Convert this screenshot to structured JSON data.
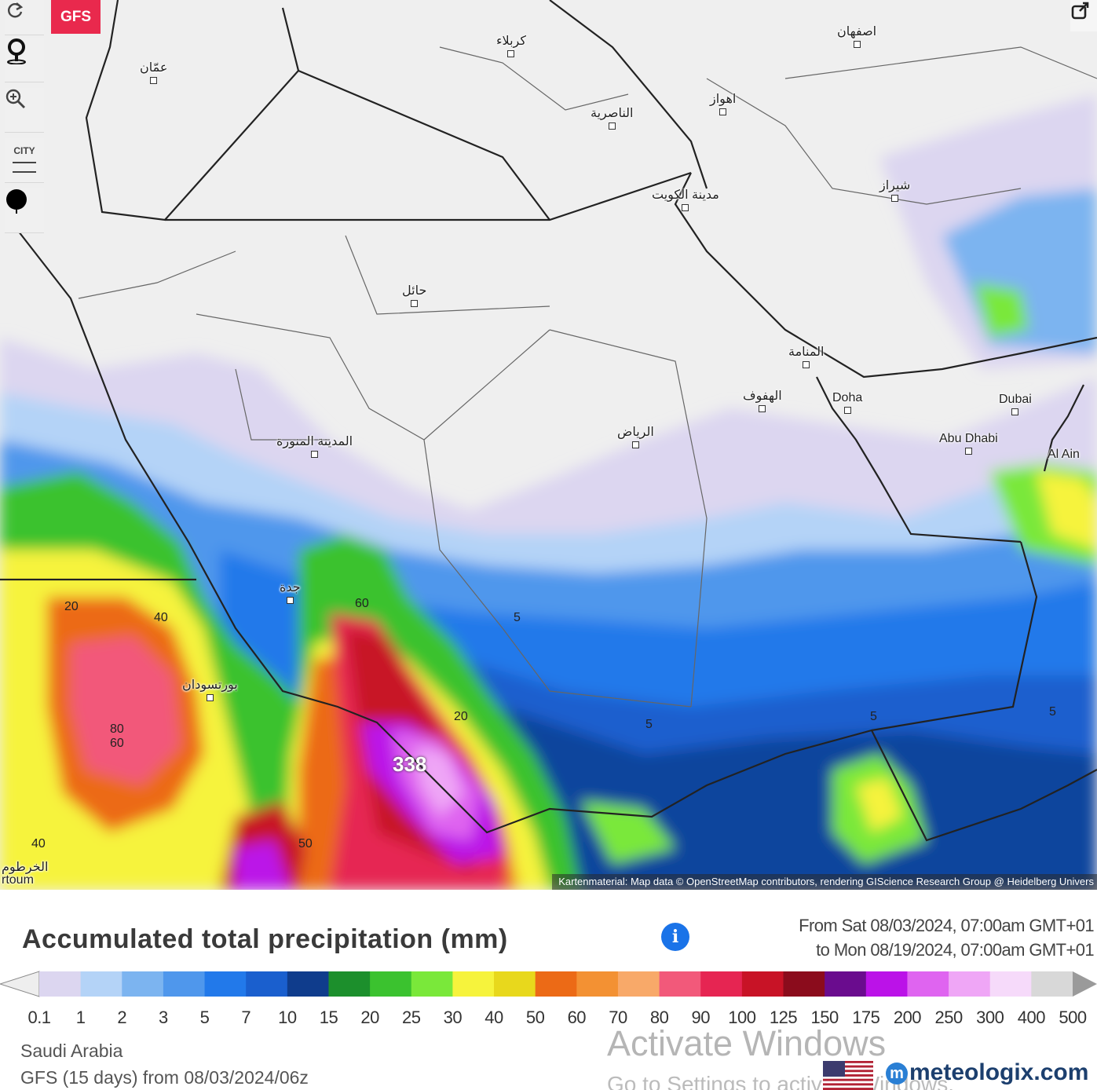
{
  "toolbar": {
    "model_badge": "GFS",
    "city_label": "CITY",
    "icons": [
      "refresh-icon",
      "location-pin-icon",
      "zoom-icon",
      "city-labels-icon",
      "marker-icon",
      "share-icon"
    ]
  },
  "map": {
    "attribution": "Kartenmaterial: Map data © OpenStreetMap contributors, rendering GIScience Research Group @ Heidelberg Univers",
    "cities": [
      {
        "id": "riyadh",
        "label": "الرياض"
      },
      {
        "id": "medina",
        "label": "المدينة المنورة"
      },
      {
        "id": "jeddah",
        "label": "جدة"
      },
      {
        "id": "hail",
        "label": "حائل"
      },
      {
        "id": "kuwait",
        "label": "مدينة الكويت"
      },
      {
        "id": "nasiriyah",
        "label": "الناصرية"
      },
      {
        "id": "ahvaz",
        "label": "اهواز"
      },
      {
        "id": "isfahan",
        "label": "اصفهان"
      },
      {
        "id": "shiraz",
        "label": "شيراز"
      },
      {
        "id": "karbala",
        "label": "كربلاء"
      },
      {
        "id": "amman",
        "label": "عمّان"
      },
      {
        "id": "manama",
        "label": "المنامة"
      },
      {
        "id": "hofuf",
        "label": "الهفوف"
      },
      {
        "id": "doha",
        "label": "Doha"
      },
      {
        "id": "dubai",
        "label": "Dubai"
      },
      {
        "id": "abudhabi",
        "label": "Abu Dhabi"
      },
      {
        "id": "alain",
        "label": "Al Ain"
      },
      {
        "id": "portsudan",
        "label": "بورتسودان"
      },
      {
        "id": "khartoum",
        "label": "الخرطوم"
      },
      {
        "id": "khartoum_en",
        "label": "rtoum"
      }
    ],
    "contour_labels": [
      "20",
      "40",
      "60",
      "20",
      "5",
      "5",
      "5",
      "5",
      "40",
      "80",
      "60",
      "50"
    ],
    "peak_value": "338"
  },
  "legend": {
    "title": "Accumulated total precipitation (mm)",
    "range_from": "From Sat 08/03/2024, 07:00am GMT+01",
    "range_to": "to Mon 08/19/2024, 07:00am GMT+01",
    "ticks": [
      "0.1",
      "1",
      "2",
      "3",
      "5",
      "7",
      "10",
      "15",
      "20",
      "25",
      "30",
      "40",
      "50",
      "60",
      "70",
      "80",
      "90",
      "100",
      "125",
      "150",
      "175",
      "200",
      "250",
      "300",
      "400",
      "500"
    ],
    "colors": [
      "#dcd6f0",
      "#b4d3f7",
      "#7cb4f0",
      "#4f97ec",
      "#2279ea",
      "#1a5fce",
      "#0f3c8c",
      "#1c8f2c",
      "#3bc22f",
      "#7ae83a",
      "#f6f33c",
      "#e8d81c",
      "#ec6a16",
      "#f39133",
      "#f8a969",
      "#f2597a",
      "#e62552",
      "#c81326",
      "#8b0c1c",
      "#6a0c8e",
      "#bb12e8",
      "#df64f0",
      "#efa6f6",
      "#f6dafa",
      "#d8d8d8"
    ],
    "region": "Saudi Arabia",
    "run": "GFS (15 days) from 08/03/2024/06z"
  },
  "overlay": {
    "watermark_line1": "Activate Windows",
    "watermark_line2": "Go to Settings to activate Windows.",
    "brand": "meteologix.com"
  }
}
